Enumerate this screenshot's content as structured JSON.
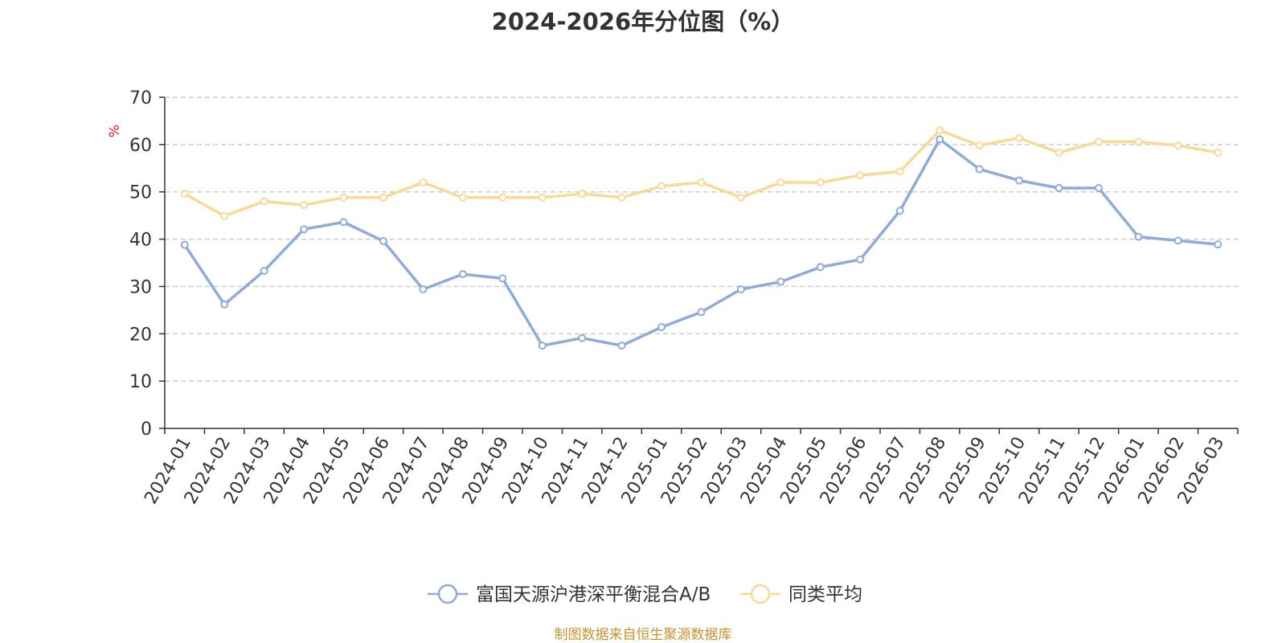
{
  "chart_data": {
    "type": "line",
    "title": "2024-2026年分位图（%）",
    "ylabel": "%",
    "ylim": [
      0,
      70
    ],
    "yticks": [
      0,
      10,
      20,
      30,
      40,
      50,
      60,
      70
    ],
    "grid": true,
    "legend_position": "bottom",
    "categories": [
      "2024-01",
      "2024-02",
      "2024-03",
      "2024-04",
      "2024-05",
      "2024-06",
      "2024-07",
      "2024-08",
      "2024-09",
      "2024-10",
      "2024-11",
      "2024-12",
      "2025-01",
      "2025-02",
      "2025-03",
      "2025-04",
      "2025-05",
      "2025-06",
      "2025-07",
      "2025-08",
      "2025-09",
      "2025-10",
      "2025-11",
      "2025-12",
      "2026-01",
      "2026-02",
      "2026-03"
    ],
    "series": [
      {
        "name": "富国天源沪港深平衡混合A/B",
        "color": "#8eacd8",
        "values": [
          38.8,
          26.2,
          33.3,
          42.1,
          43.6,
          39.6,
          29.4,
          32.6,
          31.7,
          17.5,
          19.1,
          17.5,
          21.4,
          24.6,
          29.4,
          31.0,
          34.1,
          35.7,
          46.0,
          61.1,
          54.8,
          52.4,
          50.8,
          50.8,
          40.5,
          39.7,
          38.9
        ]
      },
      {
        "name": "同类平均",
        "color": "#fad996",
        "values": [
          49.6,
          44.9,
          48.0,
          47.2,
          48.8,
          48.8,
          52.0,
          48.8,
          48.8,
          48.8,
          49.6,
          48.8,
          51.2,
          52.0,
          48.8,
          52.0,
          52.0,
          53.5,
          54.3,
          63.0,
          59.8,
          61.4,
          58.3,
          60.6,
          60.6,
          59.8,
          58.3
        ]
      }
    ]
  },
  "source_text": "制图数据来自恒生聚源数据库"
}
